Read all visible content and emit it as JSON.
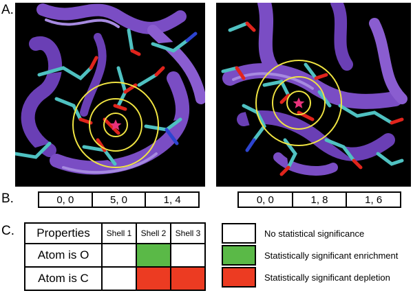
{
  "panel_labels": {
    "a": "A.",
    "b": "B.",
    "c": "C."
  },
  "colors": {
    "enrichment": "#5ab947",
    "depletion": "#ec3b22",
    "none": "#ffffff",
    "ribbon": "#7a4dc4",
    "carbon": "#4fc1c1",
    "oxygen": "#e0241c",
    "nitrogen": "#2d44d0",
    "shell_circle": "#f0e442",
    "center_star": "#e8327c"
  },
  "shell_counts": {
    "left": [
      "0, 0",
      "5, 0",
      "1, 4"
    ],
    "right": [
      "0, 0",
      "1, 8",
      "1, 6"
    ]
  },
  "properties_table": {
    "header": [
      "Properties",
      "Shell 1",
      "Shell 2",
      "Shell 3"
    ],
    "rows": [
      {
        "label": "Atom is O",
        "cells": [
          "none",
          "enrichment",
          "none"
        ]
      },
      {
        "label": "Atom is C",
        "cells": [
          "none",
          "depletion",
          "depletion"
        ]
      }
    ]
  },
  "legend": [
    {
      "key": "none",
      "label": "No statistical significance"
    },
    {
      "key": "enrichment",
      "label": "Statistically significant enrichment"
    },
    {
      "key": "depletion",
      "label": "Statistically significant depletion"
    }
  ]
}
